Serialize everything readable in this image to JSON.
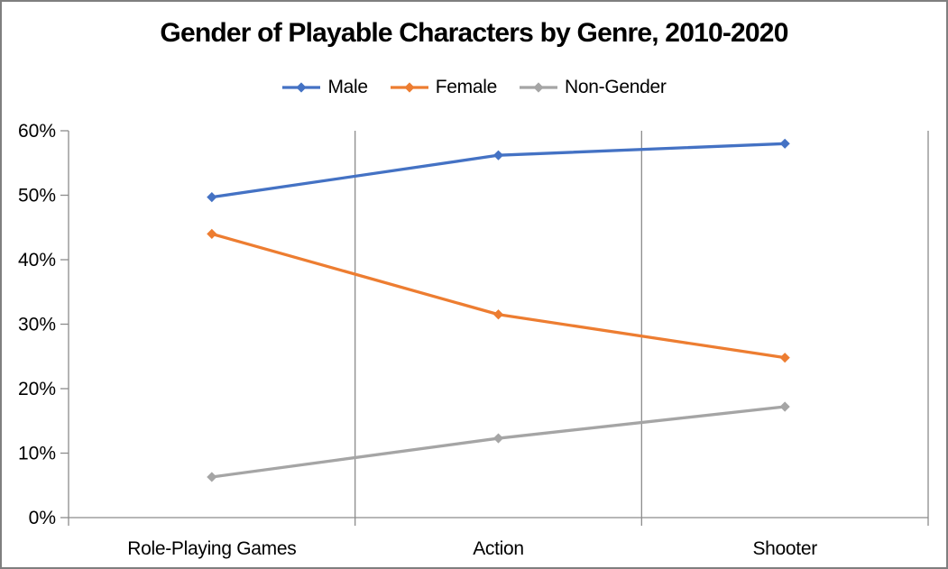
{
  "chart_data": {
    "type": "line",
    "title": "Gender of Playable Characters by Genre, 2010-2020",
    "categories": [
      "Role-Playing Games",
      "Action",
      "Shooter"
    ],
    "series": [
      {
        "name": "Male",
        "color": "#4472C4",
        "values": [
          49.7,
          56.2,
          58.0
        ]
      },
      {
        "name": "Female",
        "color": "#ED7D31",
        "values": [
          44.0,
          31.5,
          24.8
        ]
      },
      {
        "name": "Non-Gender",
        "color": "#A5A5A5",
        "values": [
          6.3,
          12.3,
          17.2
        ]
      }
    ],
    "y_axis": {
      "min": 0,
      "max": 60,
      "step": 10,
      "tick_labels": [
        "0%",
        "10%",
        "20%",
        "30%",
        "40%",
        "50%",
        "60%"
      ],
      "format": "percent"
    },
    "x_axis": {
      "gridlines": "category-boundaries"
    },
    "legend_position": "top",
    "marker_shape": "diamond",
    "colors": {
      "axis_and_gridlines": "#8C8C8C",
      "text": "#000000",
      "background": "#FFFFFF",
      "frame_border": "#7F7F7F"
    }
  }
}
